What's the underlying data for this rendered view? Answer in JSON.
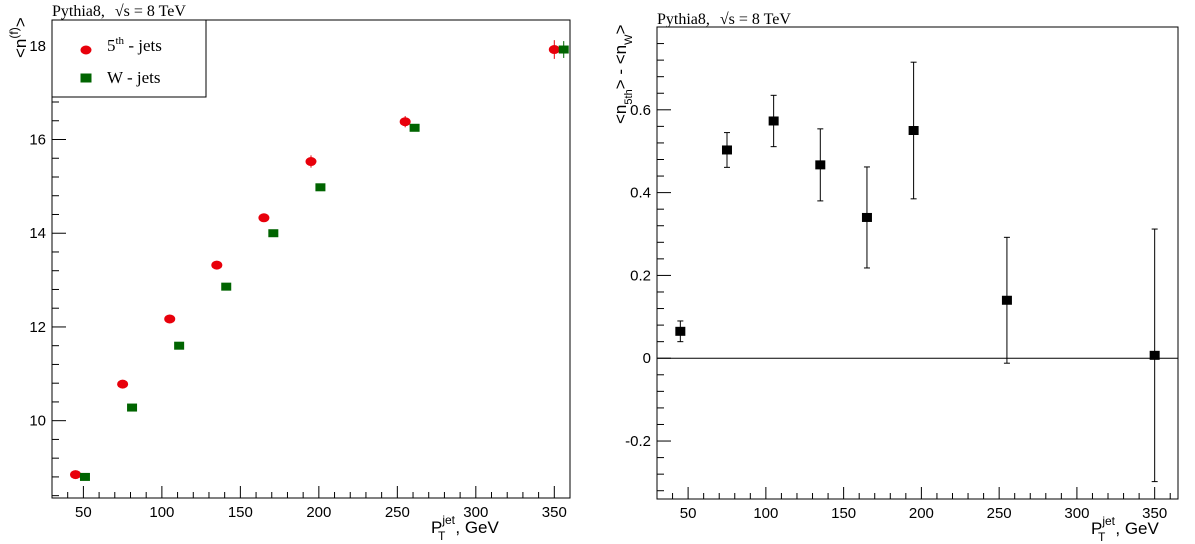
{
  "chart_data": [
    {
      "type": "scatter",
      "title": "Pythia8,  √s = 8 TeV",
      "title_parts": {
        "prefix": "Pythia8,",
        "sqrt": "√",
        "s_eq": "s = 8 TeV"
      },
      "xlabel": {
        "main": "P",
        "sup": "jet",
        "sub": "T",
        "rest": ", GeV"
      },
      "ylabel": {
        "open": "<n",
        "sup": "(f)",
        "close": ">"
      },
      "xlim": [
        30,
        360
      ],
      "ylim": [
        8.35,
        18.55
      ],
      "xticks": [
        50,
        100,
        150,
        200,
        250,
        300,
        350
      ],
      "yticks": [
        10,
        12,
        14,
        16,
        18
      ],
      "legend": {
        "placement": "top-left",
        "entries": [
          {
            "pre": "5",
            "sup": "th",
            "post": " - jets",
            "marker": "circle",
            "color": "#e8000b"
          },
          {
            "pre": "W - jets",
            "sup": "",
            "post": "",
            "marker": "square",
            "color": "#006400"
          }
        ]
      },
      "series": [
        {
          "name": "5th - jets",
          "marker": "circle",
          "color": "#e8000b",
          "x": [
            45,
            75,
            105,
            135,
            165,
            195,
            255,
            350
          ],
          "y": [
            8.85,
            10.78,
            12.17,
            13.32,
            14.33,
            15.53,
            16.38,
            17.92
          ],
          "err": [
            0.03,
            0.04,
            0.05,
            0.06,
            0.09,
            0.13,
            0.12,
            0.2
          ]
        },
        {
          "name": "W - jets",
          "marker": "square",
          "color": "#006400",
          "x": [
            51,
            81,
            111,
            141,
            171,
            201,
            261,
            356
          ],
          "y": [
            8.8,
            10.28,
            11.6,
            12.86,
            14.0,
            14.98,
            16.25,
            17.92
          ],
          "err": [
            0.02,
            0.03,
            0.03,
            0.04,
            0.05,
            0.05,
            0.06,
            0.18
          ]
        }
      ]
    },
    {
      "type": "scatter",
      "title": "Pythia8,  √s = 8 TeV",
      "title_parts": {
        "prefix": "Pythia8,",
        "sqrt": "√",
        "s_eq": "s = 8 TeV"
      },
      "xlabel": {
        "main": "P",
        "sup": "jet",
        "sub": "T",
        "rest": ", GeV"
      },
      "ylabel": {
        "a": "<n",
        "a_sub": "5th",
        "b": "> - <n",
        "b_sub": "W",
        "c": ">"
      },
      "xlim": [
        30,
        365
      ],
      "ylim": [
        -0.34,
        0.8
      ],
      "xticks": [
        50,
        100,
        150,
        200,
        250,
        300,
        350
      ],
      "yticks": [
        -0.2,
        0,
        0.2,
        0.4,
        0.6
      ],
      "ytick_labels": [
        "-0.2",
        "0",
        "0.2",
        "0.4",
        "0.6"
      ],
      "zero_line": true,
      "series": [
        {
          "marker": "square",
          "color": "#000000",
          "x": [
            45,
            75,
            105,
            135,
            165,
            195,
            255,
            350
          ],
          "y": [
            0.065,
            0.503,
            0.573,
            0.467,
            0.34,
            0.55,
            0.14,
            0.007
          ],
          "err": [
            0.025,
            0.042,
            0.062,
            0.087,
            0.122,
            0.165,
            0.152,
            0.305
          ]
        }
      ]
    }
  ]
}
